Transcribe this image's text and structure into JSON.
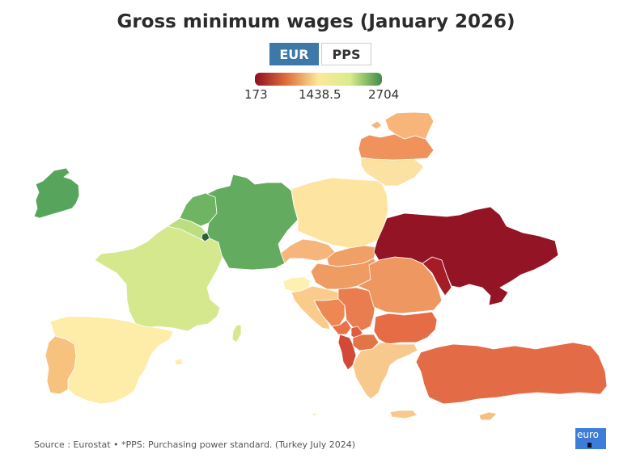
{
  "title": "Gross minimum wages (January 2026)",
  "toggle": {
    "active": "EUR",
    "inactive": "PPS"
  },
  "legend": {
    "min": "173",
    "mid": "1438.5",
    "max": "2704",
    "colors": [
      "#8f0f22",
      "#e0703c",
      "#fde89a",
      "#d9ec8c",
      "#3f8c48"
    ]
  },
  "colors": {
    "ireland": "#57a55d",
    "germany": "#63ab5f",
    "belgium": "#bcdd80",
    "netherlands": "#6fb462",
    "luxembourg": "#2f5e3b",
    "france": "#d5e88e",
    "spain": "#fdeda8",
    "portugal": "#f6c27d",
    "poland": "#fde4a0",
    "lithuania": "#fbe1a2",
    "latvia": "#f0925b",
    "estonia": "#f7b57a",
    "czechia": "#f6b57a",
    "slovakia": "#f0a066",
    "hungary": "#ef9c63",
    "slovenia": "#fdf1b1",
    "croatia": "#f9cc8c",
    "romania": "#ee9760",
    "bulgaria": "#e56c45",
    "serbia": "#ea7d4f",
    "bosnia": "#ee8853",
    "montenegro": "#e8724a",
    "albania": "#d24a37",
    "north_macedonia": "#e27546",
    "kosovo": "#df5a3e",
    "greece": "#f8c98c",
    "cyprus": "#f7bf80",
    "malta": "#fef0ad",
    "ukraine": "#931424",
    "moldova": "#a51c27",
    "turkey": "#e36b45"
  },
  "source": "Source : Eurostat • *PPS: Purchasing power standard. (Turkey July 2024)",
  "logo_text": "euro"
}
